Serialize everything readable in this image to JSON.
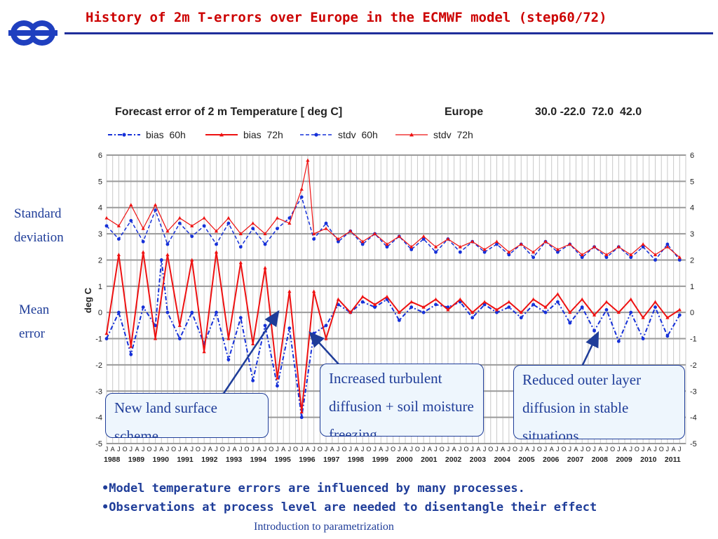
{
  "slide": {
    "title": "History of 2m T-errors over Europe in the ECMWF model (step60/72)",
    "side_labels": {
      "standard_deviation": "Standard deviation",
      "mean_error": "Mean error"
    },
    "callouts": {
      "land_surface": "New land surface scheme",
      "turbulent": "Increased turbulent diffusion + soil moisture freezing",
      "outer_layer": "Reduced outer layer diffusion in stable situations"
    },
    "bullets": [
      "•Model temperature errors are influenced by many processes.",
      "•Observations at process level are needed to disentangle their effect"
    ],
    "footer": "Introduction to parametrization",
    "colors": {
      "title": "#cc0000",
      "rule": "#1f2e9b",
      "blue_series": "#1530d8",
      "red_series": "#ee1111",
      "text": "#1f3d99"
    }
  },
  "chart_data": {
    "type": "line",
    "title": "Forecast error of 2 m Temperature [ deg C]",
    "region": "Europe",
    "domain": "30.0 -22.0  72.0  42.0",
    "ylabel": "deg C",
    "ylim": [
      -5,
      6
    ],
    "yticks": [
      -5,
      -4,
      -3,
      -2,
      -1,
      0,
      1,
      2,
      3,
      4,
      5,
      6
    ],
    "xlim": [
      1988.0,
      2011.75
    ],
    "month_letters": [
      "J",
      "A",
      "J",
      "O"
    ],
    "years": [
      "1988",
      "1989",
      "1990",
      "1991",
      "1992",
      "1993",
      "1994",
      "1995",
      "1996",
      "1997",
      "1998",
      "1999",
      "2000",
      "2001",
      "2002",
      "2003",
      "2004",
      "2005",
      "2006",
      "2007",
      "2008",
      "2009",
      "2010",
      "2011"
    ],
    "grid": true,
    "legend_position": "top",
    "series": [
      {
        "name": "bias  60h",
        "color": "#1530d8",
        "style": "dash-dot",
        "x": [
          1988.0,
          1988.5,
          1989.0,
          1989.5,
          1990.0,
          1990.25,
          1990.5,
          1991.0,
          1991.5,
          1992.0,
          1992.5,
          1993.0,
          1993.5,
          1994.0,
          1994.5,
          1995.0,
          1995.5,
          1996.0,
          1996.5,
          1997.0,
          1997.5,
          1998.0,
          1998.5,
          1999.0,
          1999.5,
          2000.0,
          2000.5,
          2001.0,
          2001.5,
          2002.0,
          2002.5,
          2003.0,
          2003.5,
          2004.0,
          2004.5,
          2005.0,
          2005.5,
          2006.0,
          2006.5,
          2007.0,
          2007.5,
          2008.0,
          2008.5,
          2009.0,
          2009.5,
          2010.0,
          2010.5,
          2011.0,
          2011.5
        ],
        "y": [
          -1.0,
          0.0,
          -1.6,
          0.2,
          -0.5,
          2.0,
          0.0,
          -1.0,
          0.0,
          -1.2,
          0.0,
          -1.8,
          -0.2,
          -2.6,
          -0.5,
          -2.8,
          -0.6,
          -4.0,
          -0.8,
          -0.5,
          0.3,
          0.0,
          0.4,
          0.2,
          0.5,
          -0.3,
          0.2,
          0.0,
          0.3,
          0.2,
          0.4,
          -0.2,
          0.3,
          0.0,
          0.2,
          -0.2,
          0.3,
          0.0,
          0.4,
          -0.4,
          0.2,
          -0.7,
          0.1,
          -1.1,
          0.0,
          -1.0,
          0.2,
          -0.9,
          -0.1
        ]
      },
      {
        "name": "bias  72h",
        "color": "#ee1111",
        "style": "solid",
        "x": [
          1988.0,
          1988.5,
          1989.0,
          1989.5,
          1990.0,
          1990.5,
          1991.0,
          1991.5,
          1992.0,
          1992.5,
          1993.0,
          1993.5,
          1994.0,
          1994.5,
          1995.0,
          1995.5,
          1996.0,
          1996.5,
          1997.0,
          1997.5,
          1998.0,
          1998.5,
          1999.0,
          1999.5,
          2000.0,
          2000.5,
          2001.0,
          2001.5,
          2002.0,
          2002.5,
          2003.0,
          2003.5,
          2004.0,
          2004.5,
          2005.0,
          2005.5,
          2006.0,
          2006.5,
          2007.0,
          2007.5,
          2008.0,
          2008.5,
          2009.0,
          2009.5,
          2010.0,
          2010.5,
          2011.0,
          2011.5
        ],
        "y": [
          -0.8,
          2.2,
          -1.3,
          2.3,
          -1.0,
          2.2,
          -0.5,
          2.0,
          -1.5,
          2.3,
          -1.0,
          1.9,
          -1.2,
          1.7,
          -2.5,
          0.8,
          -3.8,
          0.8,
          -1.0,
          0.5,
          0.0,
          0.6,
          0.3,
          0.6,
          0.0,
          0.4,
          0.2,
          0.5,
          0.1,
          0.5,
          0.0,
          0.4,
          0.1,
          0.4,
          0.0,
          0.5,
          0.2,
          0.7,
          0.0,
          0.5,
          -0.1,
          0.4,
          0.0,
          0.5,
          -0.2,
          0.4,
          -0.2,
          0.1
        ]
      },
      {
        "name": "stdv  60h",
        "color": "#1530d8",
        "style": "dashed",
        "x": [
          1988.0,
          1988.5,
          1989.0,
          1989.5,
          1990.0,
          1990.5,
          1991.0,
          1991.5,
          1992.0,
          1992.5,
          1993.0,
          1993.5,
          1994.0,
          1994.5,
          1995.0,
          1995.5,
          1996.0,
          1996.5,
          1997.0,
          1997.5,
          1998.0,
          1998.5,
          1999.0,
          1999.5,
          2000.0,
          2000.5,
          2001.0,
          2001.5,
          2002.0,
          2002.5,
          2003.0,
          2003.5,
          2004.0,
          2004.5,
          2005.0,
          2005.5,
          2006.0,
          2006.5,
          2007.0,
          2007.5,
          2008.0,
          2008.5,
          2009.0,
          2009.5,
          2010.0,
          2010.5,
          2011.0,
          2011.5
        ],
        "y": [
          3.3,
          2.8,
          3.5,
          2.7,
          3.9,
          2.6,
          3.4,
          2.9,
          3.3,
          2.6,
          3.4,
          2.5,
          3.2,
          2.6,
          3.2,
          3.6,
          4.4,
          2.8,
          3.4,
          2.7,
          3.1,
          2.6,
          3.0,
          2.5,
          2.9,
          2.4,
          2.8,
          2.3,
          2.8,
          2.3,
          2.7,
          2.3,
          2.6,
          2.2,
          2.6,
          2.1,
          2.7,
          2.3,
          2.6,
          2.1,
          2.5,
          2.1,
          2.5,
          2.1,
          2.5,
          2.0,
          2.6,
          2.0
        ]
      },
      {
        "name": "stdv  72h",
        "color": "#ee1111",
        "style": "solid-thin",
        "x": [
          1988.0,
          1988.5,
          1989.0,
          1989.5,
          1990.0,
          1990.5,
          1991.0,
          1991.5,
          1992.0,
          1992.5,
          1993.0,
          1993.5,
          1994.0,
          1994.5,
          1995.0,
          1995.5,
          1996.0,
          1996.25,
          1996.5,
          1997.0,
          1997.5,
          1998.0,
          1998.5,
          1999.0,
          1999.5,
          2000.0,
          2000.5,
          2001.0,
          2001.5,
          2002.0,
          2002.5,
          2003.0,
          2003.5,
          2004.0,
          2004.5,
          2005.0,
          2005.5,
          2006.0,
          2006.5,
          2007.0,
          2007.5,
          2008.0,
          2008.5,
          2009.0,
          2009.5,
          2010.0,
          2010.5,
          2011.0,
          2011.5
        ],
        "y": [
          3.6,
          3.3,
          4.1,
          3.2,
          4.1,
          3.1,
          3.6,
          3.3,
          3.6,
          3.1,
          3.6,
          3.0,
          3.4,
          3.0,
          3.6,
          3.4,
          4.7,
          5.8,
          3.0,
          3.2,
          2.8,
          3.1,
          2.7,
          3.0,
          2.6,
          2.9,
          2.5,
          2.9,
          2.5,
          2.8,
          2.5,
          2.7,
          2.4,
          2.7,
          2.3,
          2.6,
          2.3,
          2.7,
          2.4,
          2.6,
          2.2,
          2.5,
          2.2,
          2.5,
          2.2,
          2.6,
          2.2,
          2.5,
          2.1
        ]
      }
    ]
  }
}
